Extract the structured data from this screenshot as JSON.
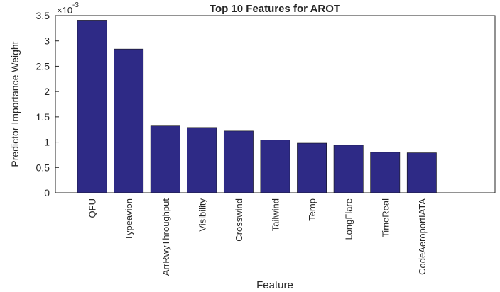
{
  "chart_data": {
    "type": "bar",
    "title": "Top 10 Features for AROT",
    "xlabel": "Feature",
    "ylabel": "Predictor Importance Weight",
    "axis_multiplier": {
      "base": "×10",
      "exponent": "-3"
    },
    "categories": [
      "QFU",
      "Typeavion",
      "ArrRwyThroughput",
      "Visibility",
      "Crosswind",
      "Tailwind",
      "Temp",
      "LongFlare",
      "TimeReal",
      "CodeAeroportIATA"
    ],
    "values": [
      3.41,
      2.84,
      1.32,
      1.29,
      1.22,
      1.04,
      0.98,
      0.94,
      0.8,
      0.79
    ],
    "color": "#2e2a86",
    "xlim": [
      0,
      12
    ],
    "ylim": [
      0,
      3.5
    ],
    "yticks": [
      0,
      0.5,
      1,
      1.5,
      2,
      2.5,
      3,
      3.5
    ],
    "grid": false
  }
}
